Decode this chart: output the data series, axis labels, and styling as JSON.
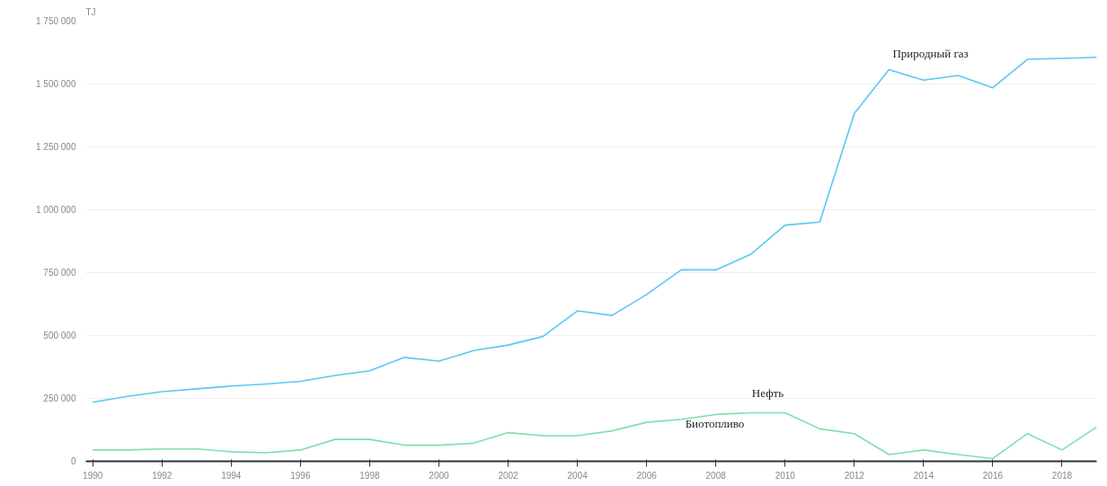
{
  "chart_data": {
    "type": "line",
    "ylabel": "TJ",
    "x": [
      1990,
      1991,
      1992,
      1993,
      1994,
      1995,
      1996,
      1997,
      1998,
      1999,
      2000,
      2001,
      2002,
      2003,
      2004,
      2005,
      2006,
      2007,
      2008,
      2009,
      2010,
      2011,
      2012,
      2013,
      2014,
      2015,
      2016,
      2017,
      2018,
      2019
    ],
    "series": [
      {
        "name": "Природный газ",
        "color": "#5bc8f0",
        "values": [
          235000,
          258000,
          277000,
          288000,
          299000,
          307000,
          318000,
          341000,
          360000,
          413000,
          398000,
          440000,
          462000,
          496000,
          598000,
          580000,
          663000,
          761000,
          761000,
          822000,
          939000,
          951000,
          1383000,
          1557000,
          1515000,
          1534000,
          1485000,
          1598000,
          1602000,
          1606000
        ]
      },
      {
        "name": "Нефть",
        "color": "#7ee0a8",
        "values": [
          45000,
          45000,
          49000,
          49000,
          38000,
          34000,
          45000,
          87000,
          87000,
          64000,
          64000,
          72000,
          114000,
          102000,
          102000,
          121000,
          155000,
          167000,
          186000,
          193000,
          193000,
          129000,
          110000,
          27000,
          45000,
          27000,
          11000,
          110000,
          45000,
          136000
        ]
      }
    ],
    "annotations": [
      "Биотопливо"
    ],
    "xlim": [
      1989.8,
      2019
    ],
    "xticks": [
      1990,
      1992,
      1994,
      1996,
      1998,
      2000,
      2002,
      2004,
      2006,
      2008,
      2010,
      2012,
      2014,
      2016,
      2018
    ],
    "ylim": [
      0,
      1750000
    ],
    "yticks": [
      {
        "value": 0,
        "label": "0"
      },
      {
        "value": 250000,
        "label": "250 000"
      },
      {
        "value": 500000,
        "label": "500 000"
      },
      {
        "value": 750000,
        "label": "750 000"
      },
      {
        "value": 1000000,
        "label": "1 000 000"
      },
      {
        "value": 1250000,
        "label": "1 250 000"
      },
      {
        "value": 1500000,
        "label": "1 500 000"
      },
      {
        "value": 1750000,
        "label": "1 750 000"
      }
    ],
    "grid": "y",
    "marker": "none",
    "line_style": "solid"
  }
}
